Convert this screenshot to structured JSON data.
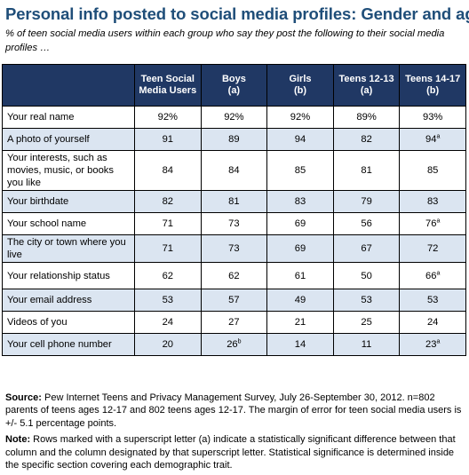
{
  "title": "Personal info posted to social media profiles: Gender and age",
  "subtitle": "% of teen social media users within each group who say they post the following to their social media profiles …",
  "table": {
    "headers": [
      {
        "line1": "",
        "line2": ""
      },
      {
        "line1": "Teen Social",
        "line2": "Media Users"
      },
      {
        "line1": "Boys",
        "line2": "(a)"
      },
      {
        "line1": "Girls",
        "line2": "(b)"
      },
      {
        "line1": "Teens 12-13",
        "line2": "(a)"
      },
      {
        "line1": "Teens 14-17",
        "line2": "(b)"
      }
    ],
    "rows": [
      {
        "label": "Your real name",
        "cells": [
          {
            "v": "92%",
            "s": ""
          },
          {
            "v": "92%",
            "s": ""
          },
          {
            "v": "92%",
            "s": ""
          },
          {
            "v": "89%",
            "s": ""
          },
          {
            "v": "93%",
            "s": ""
          }
        ]
      },
      {
        "label": "A photo of yourself",
        "cells": [
          {
            "v": "91",
            "s": ""
          },
          {
            "v": "89",
            "s": ""
          },
          {
            "v": "94",
            "s": ""
          },
          {
            "v": "82",
            "s": ""
          },
          {
            "v": "94",
            "s": "a"
          }
        ]
      },
      {
        "label": "Your interests, such as movies, music, or books you like",
        "cells": [
          {
            "v": "84",
            "s": ""
          },
          {
            "v": "84",
            "s": ""
          },
          {
            "v": "85",
            "s": ""
          },
          {
            "v": "81",
            "s": ""
          },
          {
            "v": "85",
            "s": ""
          }
        ]
      },
      {
        "label": "Your birthdate",
        "cells": [
          {
            "v": "82",
            "s": ""
          },
          {
            "v": "81",
            "s": ""
          },
          {
            "v": "83",
            "s": ""
          },
          {
            "v": "79",
            "s": ""
          },
          {
            "v": "83",
            "s": ""
          }
        ]
      },
      {
        "label": "Your school name",
        "cells": [
          {
            "v": "71",
            "s": ""
          },
          {
            "v": "73",
            "s": ""
          },
          {
            "v": "69",
            "s": ""
          },
          {
            "v": "56",
            "s": ""
          },
          {
            "v": "76",
            "s": "a"
          }
        ]
      },
      {
        "label": "The city or town where you live",
        "cells": [
          {
            "v": "71",
            "s": ""
          },
          {
            "v": "73",
            "s": ""
          },
          {
            "v": "69",
            "s": ""
          },
          {
            "v": "67",
            "s": ""
          },
          {
            "v": "72",
            "s": ""
          }
        ]
      },
      {
        "label": "Your relationship status",
        "cells": [
          {
            "v": "62",
            "s": ""
          },
          {
            "v": "62",
            "s": ""
          },
          {
            "v": "61",
            "s": ""
          },
          {
            "v": "50",
            "s": ""
          },
          {
            "v": "66",
            "s": "a"
          }
        ]
      },
      {
        "label": "Your email address",
        "cells": [
          {
            "v": "53",
            "s": ""
          },
          {
            "v": "57",
            "s": ""
          },
          {
            "v": "49",
            "s": ""
          },
          {
            "v": "53",
            "s": ""
          },
          {
            "v": "53",
            "s": ""
          }
        ]
      },
      {
        "label": "Videos of you",
        "cells": [
          {
            "v": "24",
            "s": ""
          },
          {
            "v": "27",
            "s": ""
          },
          {
            "v": "21",
            "s": ""
          },
          {
            "v": "25",
            "s": ""
          },
          {
            "v": "24",
            "s": ""
          }
        ]
      },
      {
        "label": "Your cell phone number",
        "cells": [
          {
            "v": "20",
            "s": ""
          },
          {
            "v": "26",
            "s": "b"
          },
          {
            "v": "14",
            "s": ""
          },
          {
            "v": "11",
            "s": ""
          },
          {
            "v": "23",
            "s": "a"
          }
        ]
      }
    ]
  },
  "footer": {
    "source_label": "Source:",
    "source_text": " Pew Internet Teens and Privacy Management Survey, July 26-September 30, 2012. n=802 parents of teens ages 12-17 and 802 teens ages 12-17.  The margin of error for teen social media users is +/- 5.1 percentage points.",
    "note_label": "Note:",
    "note_text": " Rows marked with a superscript letter (a) indicate a statistically significant difference between that column and the column designated by that superscript letter. Statistical significance is determined inside the specific section covering each demographic trait."
  },
  "colors": {
    "title": "#1f4e79",
    "header_bg": "#203864",
    "row_alt_bg": "#dbe5f1"
  }
}
